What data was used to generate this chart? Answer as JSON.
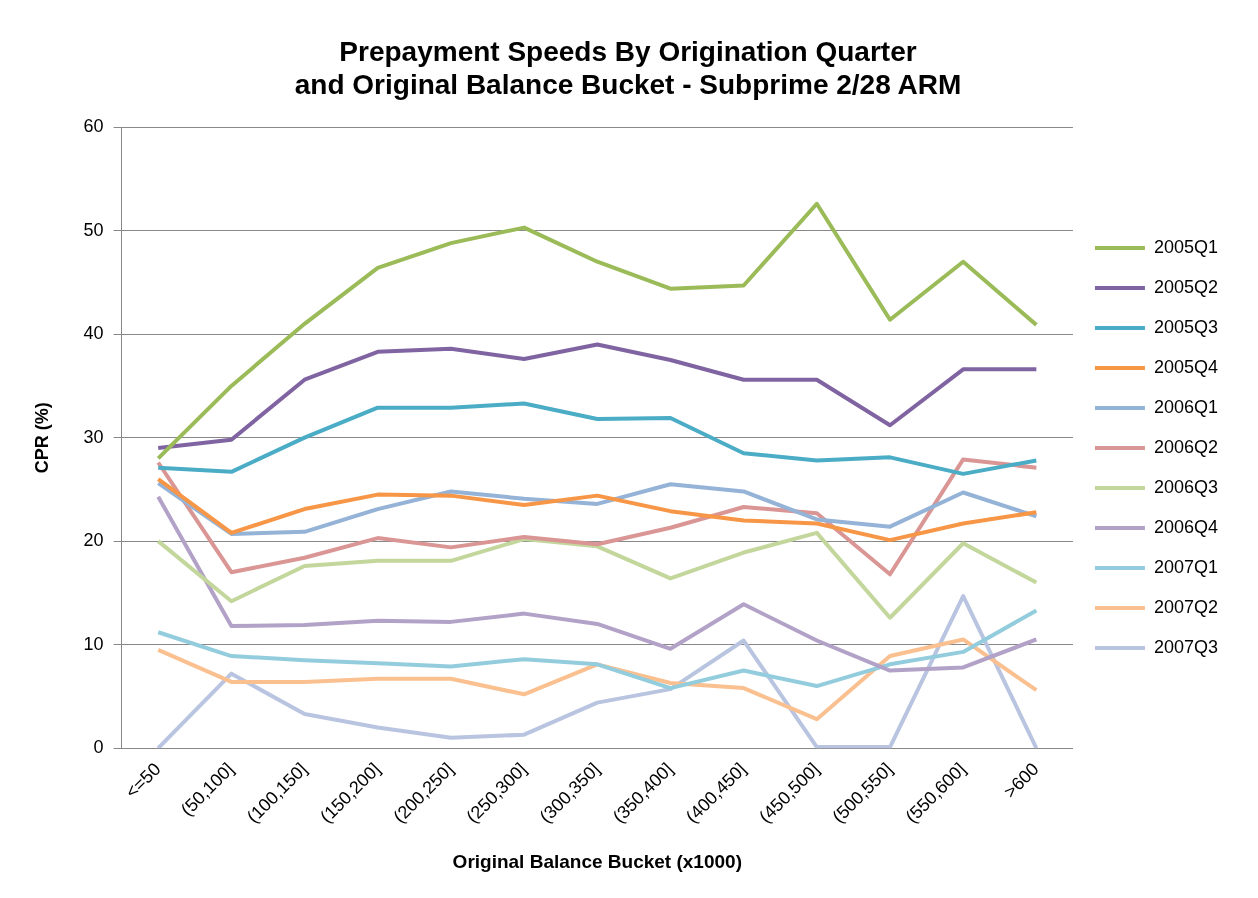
{
  "chart_data": {
    "type": "line",
    "title": "Prepayment Speeds By Origination Quarter\nand Original Balance Bucket - Subprime 2/28 ARM",
    "xlabel": "Original Balance Bucket (x1000)",
    "ylabel": "CPR (%)",
    "categories": [
      "<=50",
      "(50,100]",
      "(100,150]",
      "(150,200]",
      "(200,250]",
      "(250,300]",
      "(300,350]",
      "(350,400]",
      "(400,450]",
      "(450,500]",
      "(500,550]",
      "(550,600]",
      ">600"
    ],
    "ylim": [
      0,
      60
    ],
    "yticks": [
      0,
      10,
      20,
      30,
      40,
      50,
      60
    ],
    "grid": "y",
    "legend": "right",
    "marker": "none",
    "line_style": "solid",
    "series": [
      {
        "name": "2005Q1",
        "color": "#9bbb59",
        "values": [
          28,
          35,
          41,
          46.4,
          48.8,
          50.3,
          47,
          44.4,
          44.7,
          52.6,
          41.4,
          47,
          40.9
        ]
      },
      {
        "name": "2005Q2",
        "color": "#8064a2",
        "values": [
          29,
          29.8,
          35.6,
          38.3,
          38.6,
          37.6,
          39,
          37.5,
          35.6,
          35.6,
          31.2,
          36.6,
          36.6
        ]
      },
      {
        "name": "2005Q3",
        "color": "#4bacc6",
        "values": [
          27.1,
          26.7,
          30,
          32.9,
          32.9,
          33.3,
          31.8,
          31.9,
          28.5,
          27.8,
          28.1,
          26.5,
          27.8
        ]
      },
      {
        "name": "2005Q4",
        "color": "#f79646",
        "values": [
          26,
          20.8,
          23.1,
          24.5,
          24.4,
          23.5,
          24.4,
          22.9,
          22,
          21.7,
          20.1,
          21.7,
          22.8
        ]
      },
      {
        "name": "2006Q1",
        "color": "#95b3d7",
        "values": [
          25.6,
          20.7,
          20.9,
          23.1,
          24.8,
          24.1,
          23.6,
          25.5,
          24.8,
          22.1,
          21.4,
          24.7,
          22.4
        ]
      },
      {
        "name": "2006Q2",
        "color": "#d99694",
        "values": [
          27.6,
          17,
          18.4,
          20.3,
          19.4,
          20.4,
          19.7,
          21.3,
          23.3,
          22.7,
          16.8,
          27.9,
          27.1
        ]
      },
      {
        "name": "2006Q3",
        "color": "#c3d69b",
        "values": [
          20,
          14.2,
          17.6,
          18.1,
          18.1,
          20.2,
          19.5,
          16.4,
          18.9,
          20.8,
          12.6,
          19.8,
          16
        ]
      },
      {
        "name": "2006Q4",
        "color": "#b3a2c7",
        "values": [
          24.3,
          11.8,
          11.9,
          12.3,
          12.2,
          13,
          12,
          9.6,
          13.9,
          10.4,
          7.5,
          7.8,
          10.5
        ]
      },
      {
        "name": "2007Q1",
        "color": "#93cddd",
        "values": [
          11.2,
          8.9,
          8.5,
          8.2,
          7.9,
          8.6,
          8.1,
          5.8,
          7.5,
          6,
          8.1,
          9.3,
          13.3
        ]
      },
      {
        "name": "2007Q2",
        "color": "#fac090",
        "values": [
          9.5,
          6.4,
          6.4,
          6.7,
          6.7,
          5.2,
          8.1,
          6.3,
          5.8,
          2.8,
          8.9,
          10.5,
          5.6
        ]
      },
      {
        "name": "2007Q3",
        "color": "#b9c5e0",
        "values": [
          0,
          7.2,
          3.3,
          2,
          1,
          1.3,
          4.4,
          5.7,
          10.4,
          0.1,
          0.1,
          14.7,
          0
        ]
      }
    ]
  }
}
